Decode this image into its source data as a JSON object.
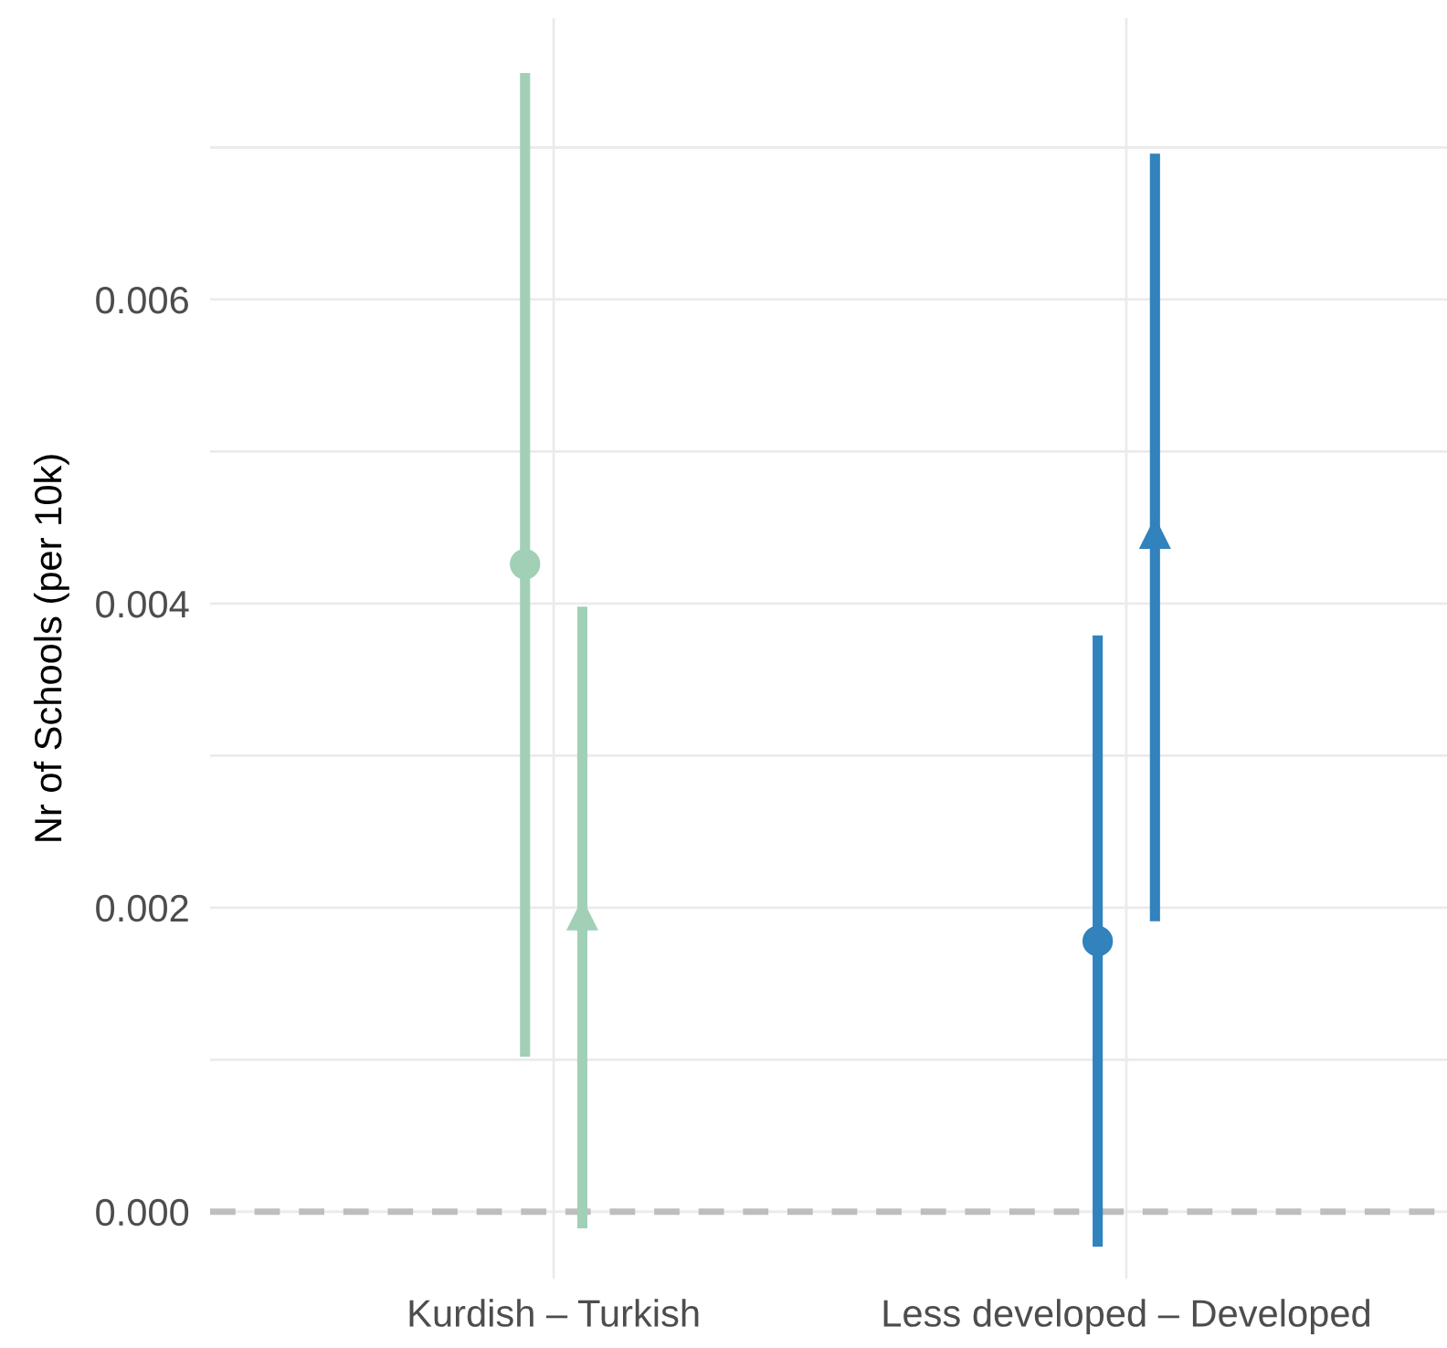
{
  "chart_data": {
    "type": "scatter",
    "ylabel": "Nr of Schools (per 10k)",
    "categories": [
      "Kurdish – Turkish",
      "Less developed – Developed"
    ],
    "series": [
      {
        "marker": "circle",
        "colors": [
          "#a1d0b7",
          "#3182bd"
        ],
        "values": [
          0.00426,
          0.00178
        ],
        "errors": [
          [
            0.00102,
            0.00749
          ],
          [
            -0.00023,
            0.00379
          ]
        ]
      },
      {
        "marker": "triangle",
        "colors": [
          "#a1d0b7",
          "#3182bd"
        ],
        "values": [
          0.00195,
          0.00446
        ],
        "errors": [
          [
            -0.00011,
            0.00398
          ],
          [
            0.00191,
            0.00696
          ]
        ]
      }
    ],
    "ylim": [
      -0.00044,
      0.00785
    ],
    "yticks": [
      {
        "value": 0,
        "label": "0.000"
      },
      {
        "value": 0.001,
        "label": null
      },
      {
        "value": 0.002,
        "label": "0.002"
      },
      {
        "value": 0.003,
        "label": null
      },
      {
        "value": 0.004,
        "label": "0.004"
      },
      {
        "value": 0.005,
        "label": null
      },
      {
        "value": 0.006,
        "label": "0.006"
      },
      {
        "value": 0.007,
        "label": null
      }
    ],
    "ref_lines": [
      {
        "axis": "y",
        "value": 0,
        "color": "#bebebe",
        "line_style": "dashed"
      }
    ],
    "grid": true,
    "legend": false
  }
}
